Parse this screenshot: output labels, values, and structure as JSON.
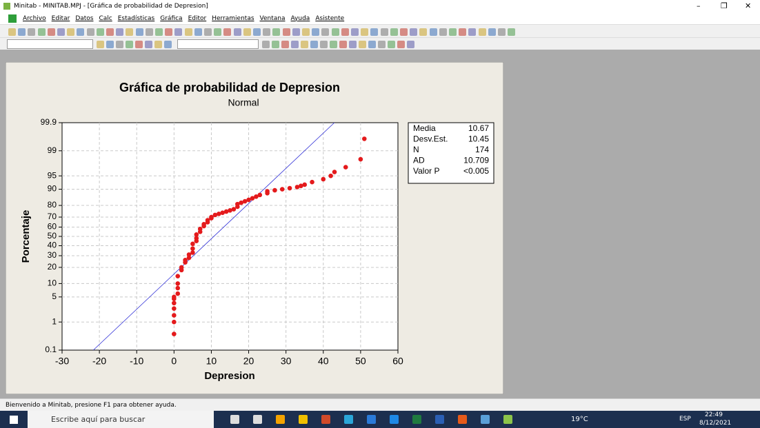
{
  "window": {
    "title": "Minitab - MINITAB.MPJ - [Gráfica de probabilidad de Depresion]"
  },
  "menu": [
    "Archivo",
    "Editar",
    "Datos",
    "Calc",
    "Estadísticas",
    "Gráfica",
    "Editor",
    "Herramientas",
    "Ventana",
    "Ayuda",
    "Asistente"
  ],
  "chart_data": {
    "type": "probability",
    "title": "Gráfica de probabilidad de Depresion",
    "subtitle": "Normal",
    "x_label": "Depresion",
    "y_label": "Porcentaje",
    "yscale": "normal-probability",
    "grid": true,
    "color": "#e41a1c",
    "fit_color": "#2b2bd6",
    "xlim": [
      -30,
      60
    ],
    "xticks": [
      -30,
      -20,
      -10,
      0,
      10,
      20,
      30,
      40,
      50,
      60
    ],
    "ylim": [
      0.1,
      99.9
    ],
    "yticks": [
      0.1,
      1,
      5,
      10,
      20,
      30,
      40,
      50,
      60,
      70,
      80,
      90,
      95,
      99,
      99.9
    ],
    "x": [
      0,
      0,
      0,
      0,
      0,
      0,
      0,
      1,
      1,
      1,
      1,
      2,
      2,
      3,
      3,
      4,
      4,
      5,
      5,
      5,
      6,
      6,
      6,
      7,
      7,
      8,
      8,
      9,
      9,
      10,
      10,
      11,
      12,
      13,
      14,
      15,
      16,
      17,
      17,
      18,
      19,
      20,
      21,
      22,
      23,
      25,
      25,
      27,
      29,
      31,
      33,
      34,
      35,
      37,
      40,
      42,
      43,
      46,
      50,
      51
    ],
    "values": [
      0.4,
      1,
      1.6,
      2.5,
      3.5,
      4.5,
      5,
      6,
      8,
      10,
      14,
      18,
      20,
      24,
      26,
      28,
      31,
      33,
      37,
      42,
      45,
      48,
      52,
      55,
      58,
      61,
      63,
      65,
      67,
      69,
      70,
      72,
      73,
      74,
      75,
      76,
      77,
      79,
      81,
      82,
      83,
      84,
      85,
      86,
      87,
      88,
      89,
      89.5,
      90,
      90.5,
      91,
      91.5,
      92,
      93,
      94,
      95,
      96,
      97,
      98.2,
      99.6
    ],
    "stats": [
      {
        "label": "Media",
        "value": 10.67
      },
      {
        "label": "Desv.Est.",
        "value": 10.45
      },
      {
        "label": "N",
        "value": 174
      },
      {
        "label": "AD",
        "value": 10.709
      },
      {
        "label": "Valor P",
        "value": "<0.005"
      }
    ]
  },
  "status_bar": "Bienvenido a Minitab, presione F1 para obtener ayuda.",
  "taskbar": {
    "search": "Escribe aquí para buscar",
    "weather": "19°C",
    "language": "ESP",
    "time": "22:49",
    "date": "8/12/2021"
  }
}
